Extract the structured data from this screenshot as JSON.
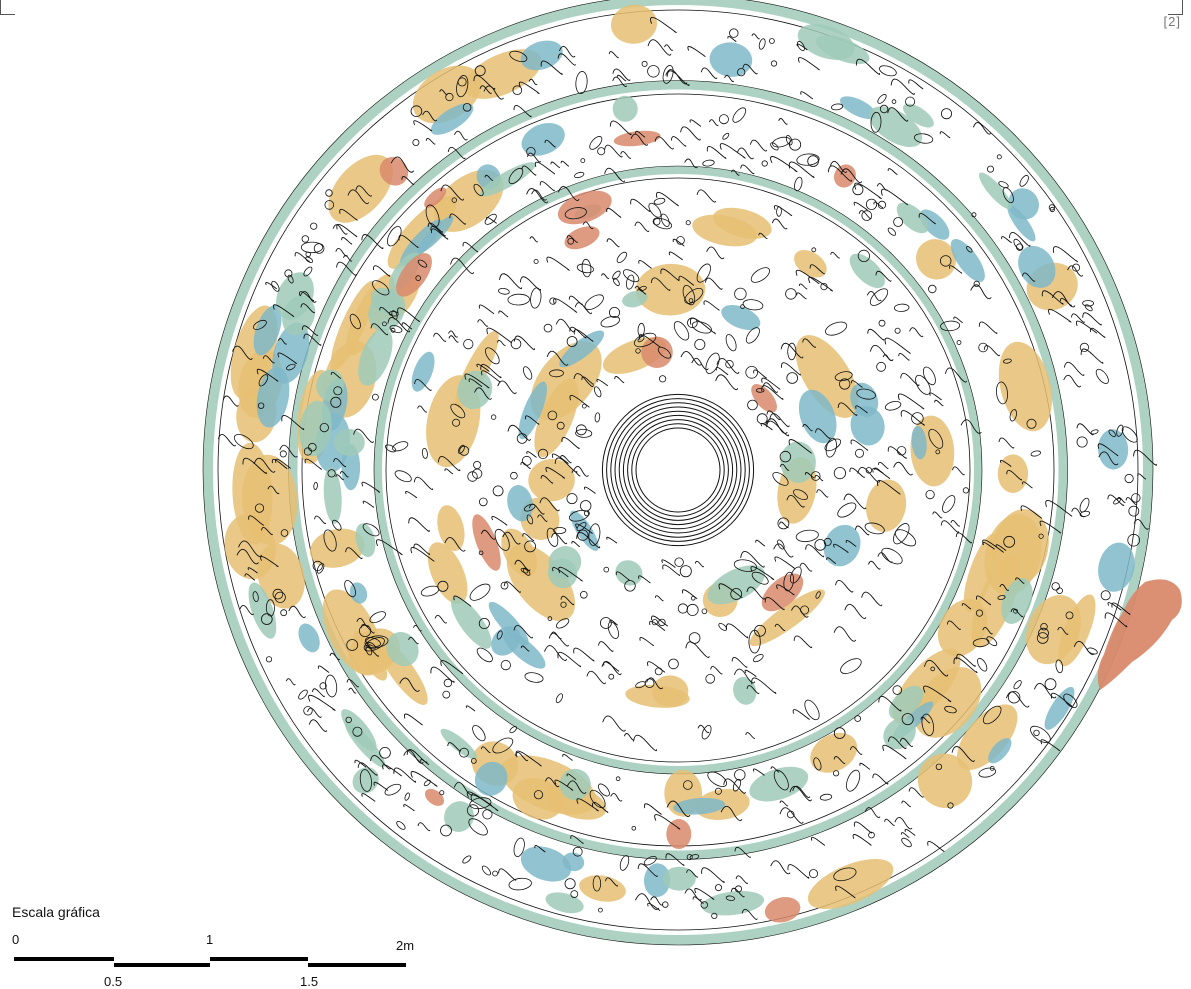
{
  "sheet_label": "[2]",
  "scale_bar": {
    "title": "Escala gráfica",
    "top_labels": [
      "0",
      "1",
      "2m"
    ],
    "bottom_labels": [
      "0.5",
      "1.5"
    ]
  },
  "legend_colors": {
    "ochre": "#e6c073",
    "blue": "#7fb8c9",
    "green": "#9fcab8",
    "salmon": "#d98a6c",
    "line": "#111111"
  }
}
